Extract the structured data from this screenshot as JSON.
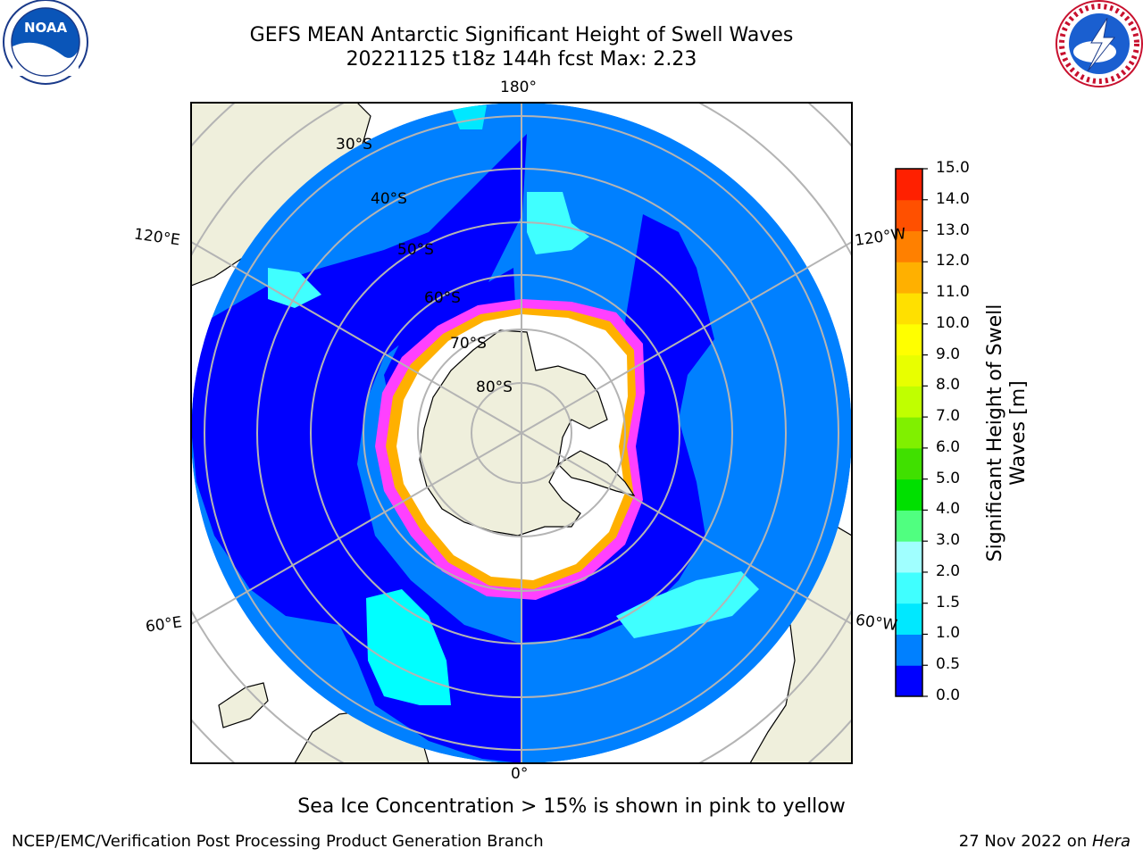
{
  "header": {
    "title_line1": "GEFS MEAN Antarctic Significant Height of Swell Waves",
    "title_line2": "20221125 t18z 144h fcst   Max: 2.23"
  },
  "logos": {
    "left": {
      "name": "noaa-logo",
      "text": "NOAA",
      "ring_text": "NATIONAL OCEANIC AND ATMOSPHERIC ADMINISTRATION · U.S. DEPARTMENT OF COMMERCE"
    },
    "right": {
      "name": "nws-logo",
      "ring_text": "NATIONAL WEATHER SERVICE"
    }
  },
  "map": {
    "longitude_labels": {
      "top": "180°",
      "bottom": "0°",
      "upper_left": "120°E",
      "lower_left": "60°E",
      "upper_right": "120°W",
      "lower_right": "60°W"
    },
    "latitude_labels": [
      "30°S",
      "40°S",
      "50°S",
      "60°S",
      "70°S",
      "80°S"
    ],
    "colors": {
      "land": "#efefdc",
      "ocean_deep": "#0000ff",
      "ocean_mid": "#0080ff",
      "ocean_light": "#00ffff",
      "sea_ice_white": "#ffffff",
      "ice_edge_pink": "#ff40ff",
      "ice_edge_orange": "#ffb000",
      "grid": "#b4b4b4"
    }
  },
  "colorbar": {
    "label": "Significant Height of Swell Waves [m]",
    "ticks": [
      "0.0",
      "0.5",
      "1.0",
      "1.5",
      "2.0",
      "3.0",
      "4.0",
      "5.0",
      "6.0",
      "7.0",
      "8.0",
      "9.0",
      "10.0",
      "11.0",
      "12.0",
      "13.0",
      "14.0",
      "15.0"
    ],
    "colors": [
      "#0000ff",
      "#0080ff",
      "#00e8ff",
      "#40ffff",
      "#a0ffff",
      "#50ff80",
      "#00e000",
      "#40e000",
      "#80f000",
      "#c0ff00",
      "#e8ff00",
      "#ffff00",
      "#ffe000",
      "#ffb000",
      "#ff8000",
      "#ff5000",
      "#ff2000",
      "#ff0000"
    ]
  },
  "notes": {
    "sea_ice": "Sea Ice Concentration > 15% is shown in pink to yellow"
  },
  "footer": {
    "left": "NCEP/EMC/Verification Post Processing Product Generation Branch",
    "right_prefix": "27 Nov 2022 on ",
    "right_machine": "Hera"
  }
}
